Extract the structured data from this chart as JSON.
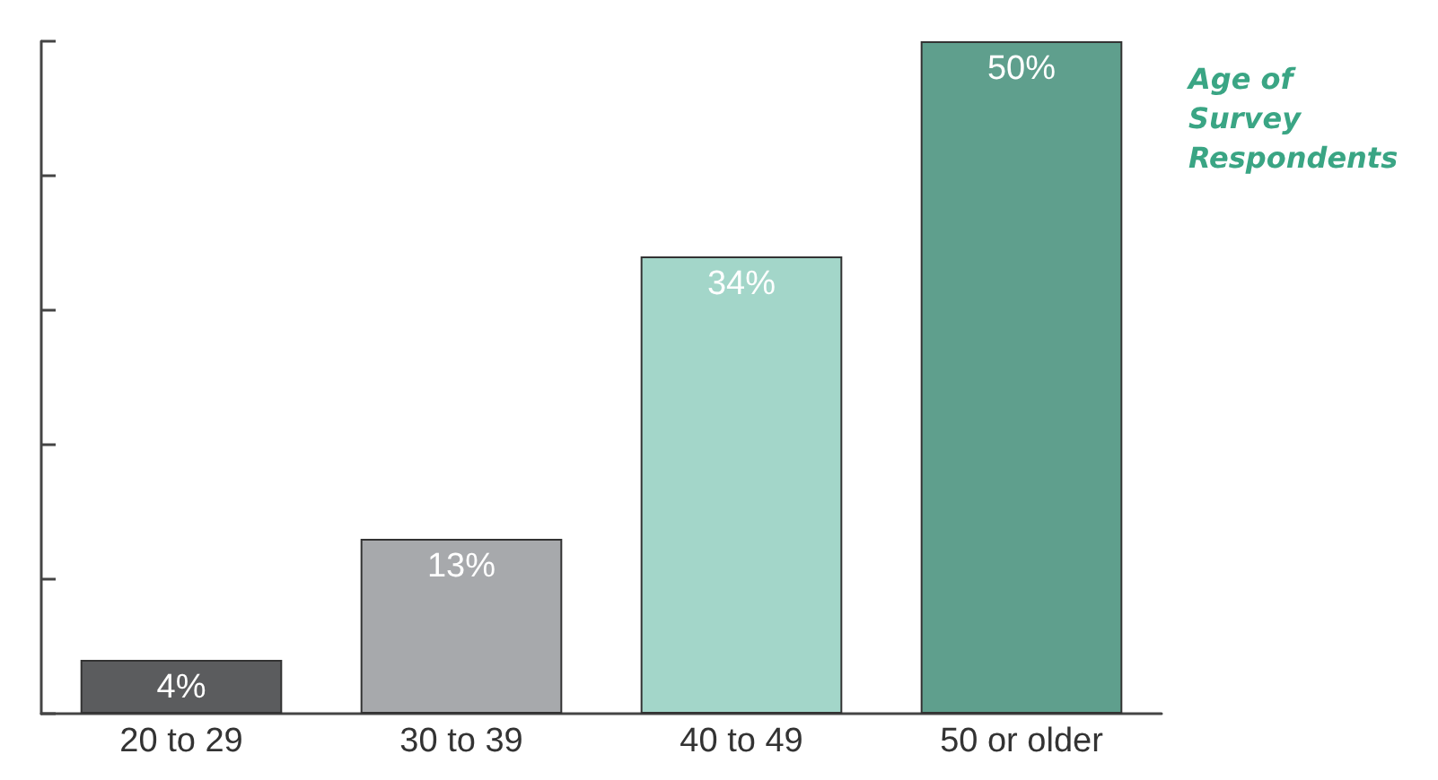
{
  "chart_data": {
    "type": "bar",
    "title": "Age of Survey Respondents",
    "categories": [
      "20 to 29",
      "30 to 39",
      "40 to 49",
      "50 or older"
    ],
    "values": [
      4,
      13,
      34,
      50
    ],
    "colors": [
      "#5b5c5e",
      "#a7a9ac",
      "#a3d6c9",
      "#5f9f8d"
    ],
    "value_labels": [
      "4%",
      "13%",
      "34%",
      "50%"
    ],
    "ylim": [
      0,
      50
    ],
    "yticks": [
      {
        "value": 0,
        "label": null
      },
      {
        "value": 10,
        "label": null
      },
      {
        "value": 20,
        "label": null
      },
      {
        "value": 30,
        "label": null
      },
      {
        "value": 40,
        "label": null
      },
      {
        "value": 50,
        "label": null
      }
    ],
    "tick_labels": "x",
    "grid": false
  }
}
